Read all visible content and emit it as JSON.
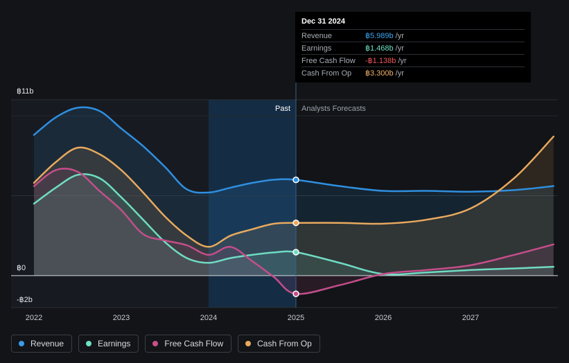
{
  "tooltip": {
    "date": "Dec 31 2024",
    "rows": [
      {
        "label": "Revenue",
        "value": "฿5.989b",
        "unit": "/yr",
        "color": "#3ba5ee"
      },
      {
        "label": "Earnings",
        "value": "฿1.468b",
        "unit": "/yr",
        "color": "#6fe0c6"
      },
      {
        "label": "Free Cash Flow",
        "value": "-฿1.138b",
        "unit": "/yr",
        "color": "#f0585f"
      },
      {
        "label": "Cash From Op",
        "value": "฿3.300b",
        "unit": "/yr",
        "color": "#f0b36a"
      }
    ]
  },
  "legend": [
    {
      "label": "Revenue",
      "color": "#3b9ae8"
    },
    {
      "label": "Earnings",
      "color": "#6ee0c4"
    },
    {
      "label": "Free Cash Flow",
      "color": "#c94f8c"
    },
    {
      "label": "Cash From Op",
      "color": "#e9a95e"
    }
  ],
  "chart_data": {
    "type": "line",
    "title": "",
    "xlabel": "",
    "ylabel": "",
    "ylim": [
      -2,
      11
    ],
    "xlim": [
      2021.85,
      2027.95
    ],
    "y_axis_labels": [
      {
        "value": 11,
        "label": "฿11b"
      },
      {
        "value": 0,
        "label": "฿0"
      },
      {
        "value": -2,
        "label": "-฿2b"
      }
    ],
    "x_ticks": [
      2022,
      2023,
      2024,
      2025,
      2026,
      2027
    ],
    "x_tick_labels": [
      "2022",
      "2023",
      "2024",
      "2025",
      "2026",
      "2027"
    ],
    "past_label": "Past",
    "forecast_label": "Analysts Forecasts",
    "past_highlight_start": 2024.0,
    "divider_x": 2025.0,
    "series": [
      {
        "name": "Revenue",
        "color": "#2f8fe0",
        "x": [
          2022.0,
          2022.25,
          2022.5,
          2022.75,
          2023.0,
          2023.25,
          2023.5,
          2023.75,
          2024.0,
          2024.25,
          2024.5,
          2024.75,
          2025.0,
          2025.5,
          2026.0,
          2026.5,
          2027.0,
          2027.5,
          2027.95
        ],
        "y": [
          8.8,
          9.9,
          10.5,
          10.3,
          9.2,
          8.1,
          6.8,
          5.4,
          5.2,
          5.5,
          5.8,
          6.0,
          5.989,
          5.6,
          5.3,
          5.3,
          5.25,
          5.35,
          5.6
        ]
      },
      {
        "name": "Earnings",
        "color": "#6fdcc3",
        "x": [
          2022.0,
          2022.25,
          2022.5,
          2022.75,
          2023.0,
          2023.25,
          2023.5,
          2023.75,
          2024.0,
          2024.25,
          2024.5,
          2024.75,
          2025.0,
          2025.5,
          2026.0,
          2026.5,
          2027.0,
          2027.5,
          2027.95
        ],
        "y": [
          4.5,
          5.5,
          6.3,
          6.1,
          4.9,
          3.5,
          2.1,
          1.1,
          0.8,
          1.1,
          1.3,
          1.45,
          1.468,
          0.8,
          0.1,
          0.2,
          0.35,
          0.45,
          0.55
        ]
      },
      {
        "name": "Free Cash Flow",
        "color": "#c44e8a",
        "x": [
          2022.0,
          2022.25,
          2022.5,
          2022.75,
          2023.0,
          2023.25,
          2023.5,
          2023.75,
          2024.0,
          2024.25,
          2024.5,
          2024.75,
          2025.0,
          2025.5,
          2026.0,
          2026.5,
          2027.0,
          2027.5,
          2027.95
        ],
        "y": [
          5.6,
          6.6,
          6.5,
          5.3,
          4.1,
          2.6,
          2.2,
          1.9,
          1.3,
          1.8,
          0.9,
          -0.1,
          -1.138,
          -0.6,
          0.1,
          0.35,
          0.65,
          1.3,
          1.95
        ]
      },
      {
        "name": "Cash From Op",
        "color": "#e9a95e",
        "x": [
          2022.0,
          2022.25,
          2022.5,
          2022.75,
          2023.0,
          2023.25,
          2023.5,
          2023.75,
          2024.0,
          2024.25,
          2024.5,
          2024.75,
          2025.0,
          2025.5,
          2026.0,
          2026.5,
          2027.0,
          2027.5,
          2027.95
        ],
        "y": [
          5.8,
          7.1,
          8.0,
          7.6,
          6.6,
          5.2,
          3.7,
          2.5,
          1.8,
          2.5,
          2.9,
          3.25,
          3.3,
          3.3,
          3.25,
          3.5,
          4.2,
          6.1,
          8.7
        ]
      }
    ]
  }
}
